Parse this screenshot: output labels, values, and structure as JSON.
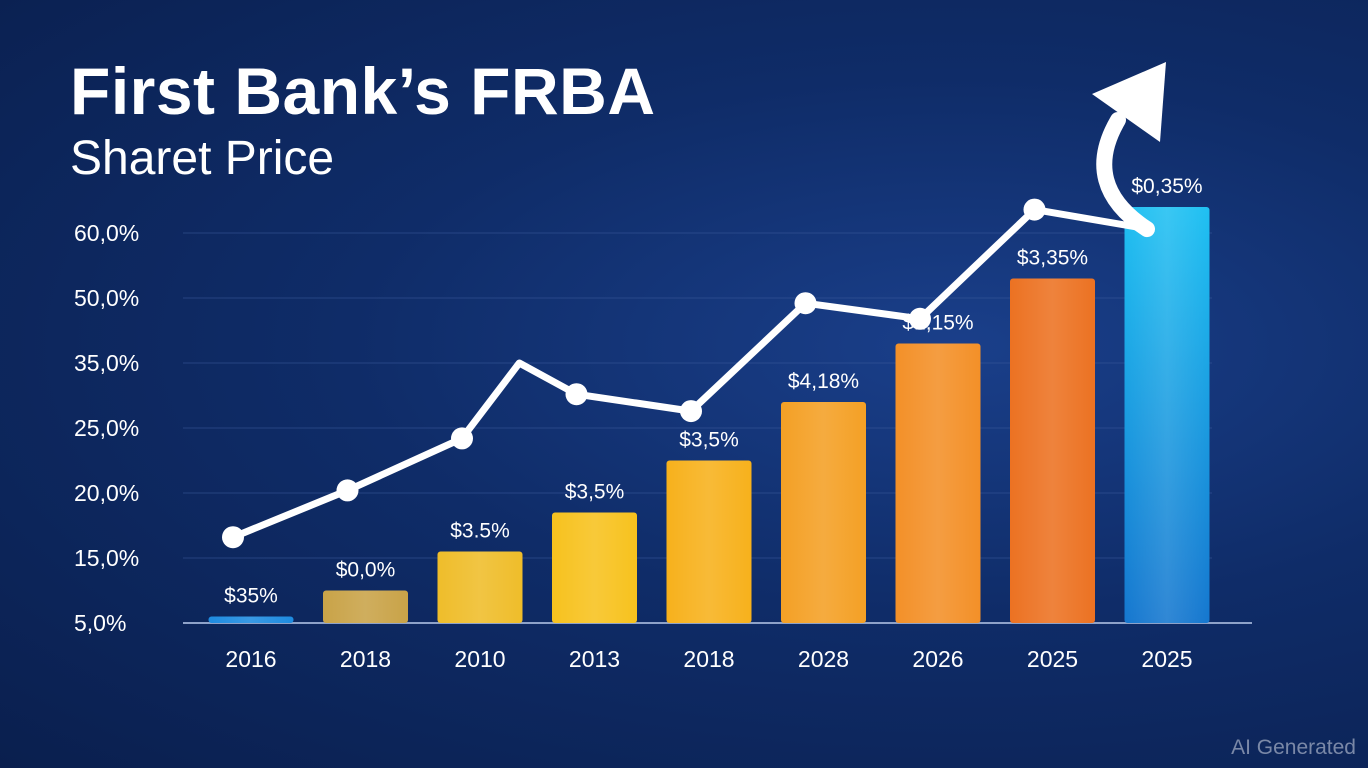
{
  "chart_data": {
    "type": "bar",
    "title": "First Bank’s FRBA",
    "subtitle": "Sharet Price",
    "y_tick_labels": [
      "60,0%",
      "50,0%",
      "35,0%",
      "25,0%",
      "20,0%",
      "15,0%",
      "5,0%"
    ],
    "categories": [
      "2016",
      "2018",
      "2010",
      "2013",
      "2018",
      "2028",
      "2026",
      "2025",
      "2025"
    ],
    "bar_values": [
      0.5,
      2.5,
      5.5,
      8.5,
      12.5,
      17,
      21.5,
      26.5,
      32
    ],
    "data_labels": [
      "$35%",
      "$0,0%",
      "$3.5%",
      "$3,5%",
      "$3,5%",
      "$4,18%",
      "$1,15%",
      "$3,35%",
      "$0,35%"
    ],
    "bar_colors": [
      "#1e8be0",
      "#c9a348",
      "#efbd2a",
      "#f7c21e",
      "#f7b11c",
      "#f4a025",
      "#f39028",
      "#ec7222",
      "#1aa3e3"
    ],
    "line_values": [
      6.6,
      10.2,
      14.2,
      17.6,
      16.3,
      24.6,
      23.4,
      31.8,
      30.3
    ],
    "line_color": "#ffffff",
    "y_range": [
      0,
      30
    ],
    "grid": true,
    "legend": "none",
    "trend_arrow": true
  },
  "watermark": "AI Generated"
}
